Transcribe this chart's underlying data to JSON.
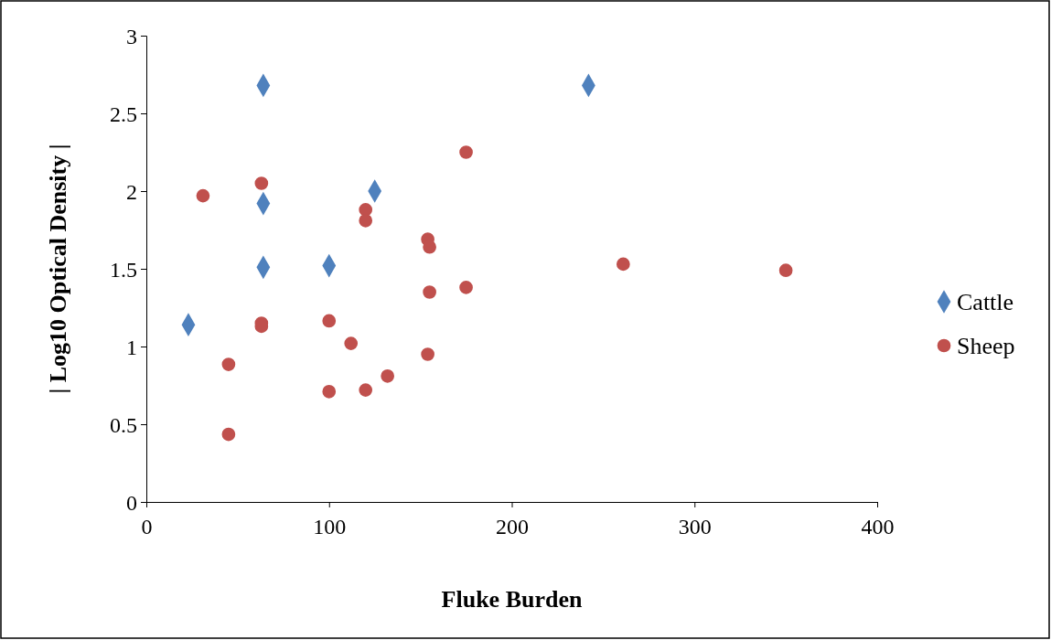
{
  "chart_data": {
    "type": "scatter",
    "xlabel": "Fluke Burden",
    "ylabel": "| Log10 Optical Density |",
    "xlim": [
      0,
      400
    ],
    "xticks": [
      0,
      100,
      200,
      300,
      400
    ],
    "ylim": [
      0,
      3
    ],
    "yticks": [
      0,
      0.5,
      1,
      1.5,
      2,
      2.5,
      3
    ],
    "grid": false,
    "legend": "right",
    "series": [
      {
        "name": "Cattle",
        "color": "#4f81bd",
        "marker": "diamond",
        "x": [
          23,
          64,
          64,
          64,
          100,
          125,
          242
        ],
        "values": [
          1.14,
          2.68,
          1.92,
          1.51,
          1.52,
          2.0,
          2.68
        ]
      },
      {
        "name": "Sheep",
        "color": "#c0504d",
        "marker": "circle",
        "x": [
          31,
          63,
          63,
          63,
          45,
          45,
          100,
          100,
          112,
          120,
          120,
          120,
          132,
          175,
          175,
          154,
          155,
          155,
          154,
          261,
          350
        ],
        "values": [
          1.97,
          2.05,
          1.15,
          1.13,
          0.885,
          0.435,
          1.165,
          0.71,
          1.02,
          1.88,
          1.81,
          0.72,
          0.81,
          2.25,
          1.38,
          1.69,
          1.64,
          1.35,
          0.95,
          1.53,
          1.49
        ]
      }
    ]
  }
}
